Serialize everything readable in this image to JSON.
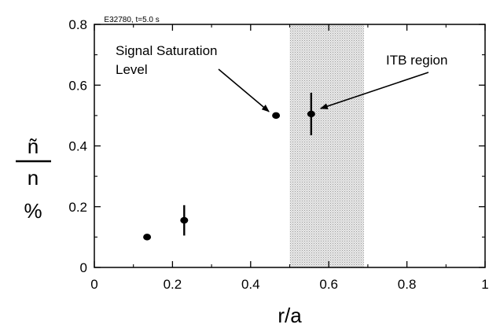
{
  "chart_data": {
    "type": "scatter",
    "title": "E32780, t=5.0 s",
    "xlabel": "r/a",
    "ylabel": {
      "numerator": "ñ",
      "denominator": "n",
      "unit": "%"
    },
    "xlim": [
      0,
      1
    ],
    "ylim": [
      0,
      0.8
    ],
    "xticks": [
      "0",
      "0.2",
      "0.4",
      "0.6",
      "0.8",
      "1"
    ],
    "yticks": [
      "0",
      "0.2",
      "0.4",
      "0.6",
      "0.8"
    ],
    "points": [
      {
        "x": 0.135,
        "y": 0.1,
        "err": 0
      },
      {
        "x": 0.23,
        "y": 0.155,
        "err": 0.05
      },
      {
        "x": 0.465,
        "y": 0.5,
        "err": 0
      },
      {
        "x": 0.555,
        "y": 0.505,
        "err": 0.07
      }
    ],
    "shaded_region": {
      "x": [
        0.5,
        0.69
      ]
    },
    "annotations": [
      {
        "lines": [
          "Signal Saturation",
          "Level"
        ]
      },
      {
        "lines": [
          "ITB region"
        ]
      }
    ],
    "grid": false
  }
}
